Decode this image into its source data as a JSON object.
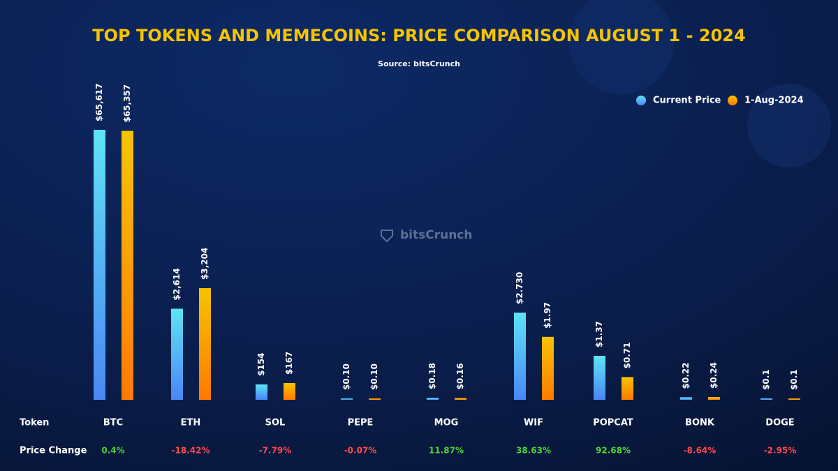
{
  "chart_data": {
    "type": "bar",
    "title": "TOP TOKENS AND MEMECOINS: PRICE COMPARISON AUGUST 1 - 2024",
    "subtitle": "Source: bitsCrunch",
    "watermark": "bitsCrunch",
    "category_header": "Token",
    "categories": [
      "BTC",
      "ETH",
      "SOL",
      "PEPE",
      "MOG",
      "WIF",
      "POPCAT",
      "BONK",
      "DOGE"
    ],
    "series": [
      {
        "name": "Current Price",
        "color": "#5fe3f5",
        "values": [
          65617,
          2614,
          154,
          0.1,
          0.18,
          2.73,
          1.37,
          0.22,
          0.1
        ],
        "value_labels": [
          "$65,617",
          "$2,614",
          "$154",
          "$0.10",
          "$0.18",
          "$2.730",
          "$1.37",
          "$0.22",
          "$0.1"
        ]
      },
      {
        "name": "1-Aug-2024",
        "color": "#f5c400",
        "values": [
          65357,
          3204,
          167,
          0.1,
          0.16,
          1.97,
          0.71,
          0.24,
          0.1
        ],
        "value_labels": [
          "$65,357",
          "$3,204",
          "$167",
          "$0.10",
          "$0.16",
          "$1.97",
          "$0.71",
          "$0.24",
          "$0.1"
        ]
      }
    ],
    "price_change": {
      "name": "Price Change",
      "values": [
        0.4,
        -18.42,
        -7.79,
        -0.07,
        11.87,
        38.63,
        92.68,
        -8.64,
        -2.95
      ],
      "value_labels": [
        "0.4%",
        "-18.42%",
        "-7.79%",
        "-0.07%",
        "11.87%",
        "38.63%",
        "92.68%",
        "-8.64%",
        "-2.95%"
      ]
    }
  }
}
